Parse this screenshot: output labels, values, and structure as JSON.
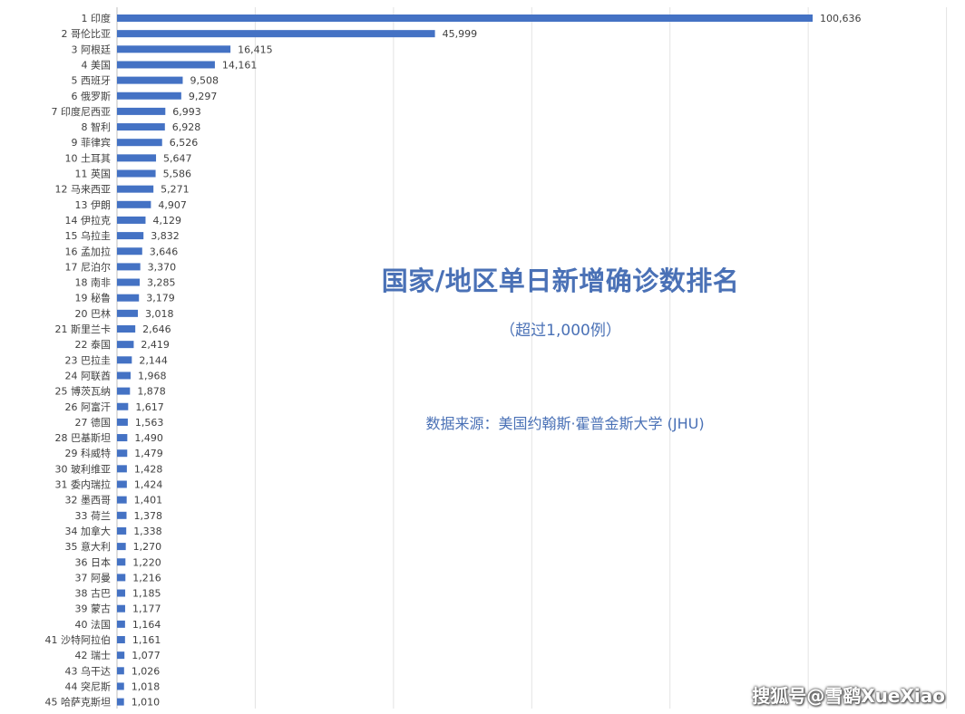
{
  "chart_data": {
    "type": "bar",
    "orientation": "horizontal",
    "title": "国家/地区单日新增确诊数排名",
    "subtitle": "（超过1,000例）",
    "source": "数据来源：美国约翰斯·霍普金斯大学 (JHU)",
    "categories": [
      "1 印度",
      "2 哥伦比亚",
      "3 阿根廷",
      "4 美国",
      "5 西班牙",
      "6 俄罗斯",
      "7 印度尼西亚",
      "8 智利",
      "9 菲律宾",
      "10 土耳其",
      "11 英国",
      "12 马来西亚",
      "13 伊朗",
      "14 伊拉克",
      "15 乌拉圭",
      "16 孟加拉",
      "17 尼泊尔",
      "18 南非",
      "19 秘鲁",
      "20 巴林",
      "21 斯里兰卡",
      "22 泰国",
      "23 巴拉圭",
      "24 阿联酋",
      "25 博茨瓦纳",
      "26 阿富汗",
      "27 德国",
      "28 巴基斯坦",
      "29 科威特",
      "30 玻利维亚",
      "31 委内瑞拉",
      "32 墨西哥",
      "33 荷兰",
      "34 加拿大",
      "35 意大利",
      "36 日本",
      "37 阿曼",
      "38 古巴",
      "39 蒙古",
      "40 法国",
      "41 沙特阿拉伯",
      "42 瑞士",
      "43 乌干达",
      "44 突尼斯",
      "45 哈萨克斯坦"
    ],
    "values": [
      100636,
      45999,
      16415,
      14161,
      9508,
      9297,
      6993,
      6928,
      6526,
      5647,
      5586,
      5271,
      4907,
      4129,
      3832,
      3646,
      3370,
      3285,
      3179,
      3018,
      2646,
      2419,
      2144,
      1968,
      1878,
      1617,
      1563,
      1490,
      1479,
      1428,
      1424,
      1401,
      1378,
      1338,
      1270,
      1220,
      1216,
      1185,
      1177,
      1164,
      1161,
      1077,
      1026,
      1018,
      1010
    ],
    "value_labels": [
      "100,636",
      "45,999",
      "16,415",
      "14,161",
      "9,508",
      "9,297",
      "6,993",
      "6,928",
      "6,526",
      "5,647",
      "5,586",
      "5,271",
      "4,907",
      "4,129",
      "3,832",
      "3,646",
      "3,370",
      "3,285",
      "3,179",
      "3,018",
      "2,646",
      "2,419",
      "2,144",
      "1,968",
      "1,878",
      "1,617",
      "1,563",
      "1,490",
      "1,479",
      "1,428",
      "1,424",
      "1,401",
      "1,378",
      "1,338",
      "1,270",
      "1,220",
      "1,216",
      "1,185",
      "1,177",
      "1,164",
      "1,161",
      "1,077",
      "1,026",
      "1,018",
      "1,010"
    ],
    "xlim": [
      0,
      120000
    ],
    "grid": true,
    "bar_color": "#4472c4"
  },
  "watermark": "搜狐号@雪鹞XueXiao"
}
